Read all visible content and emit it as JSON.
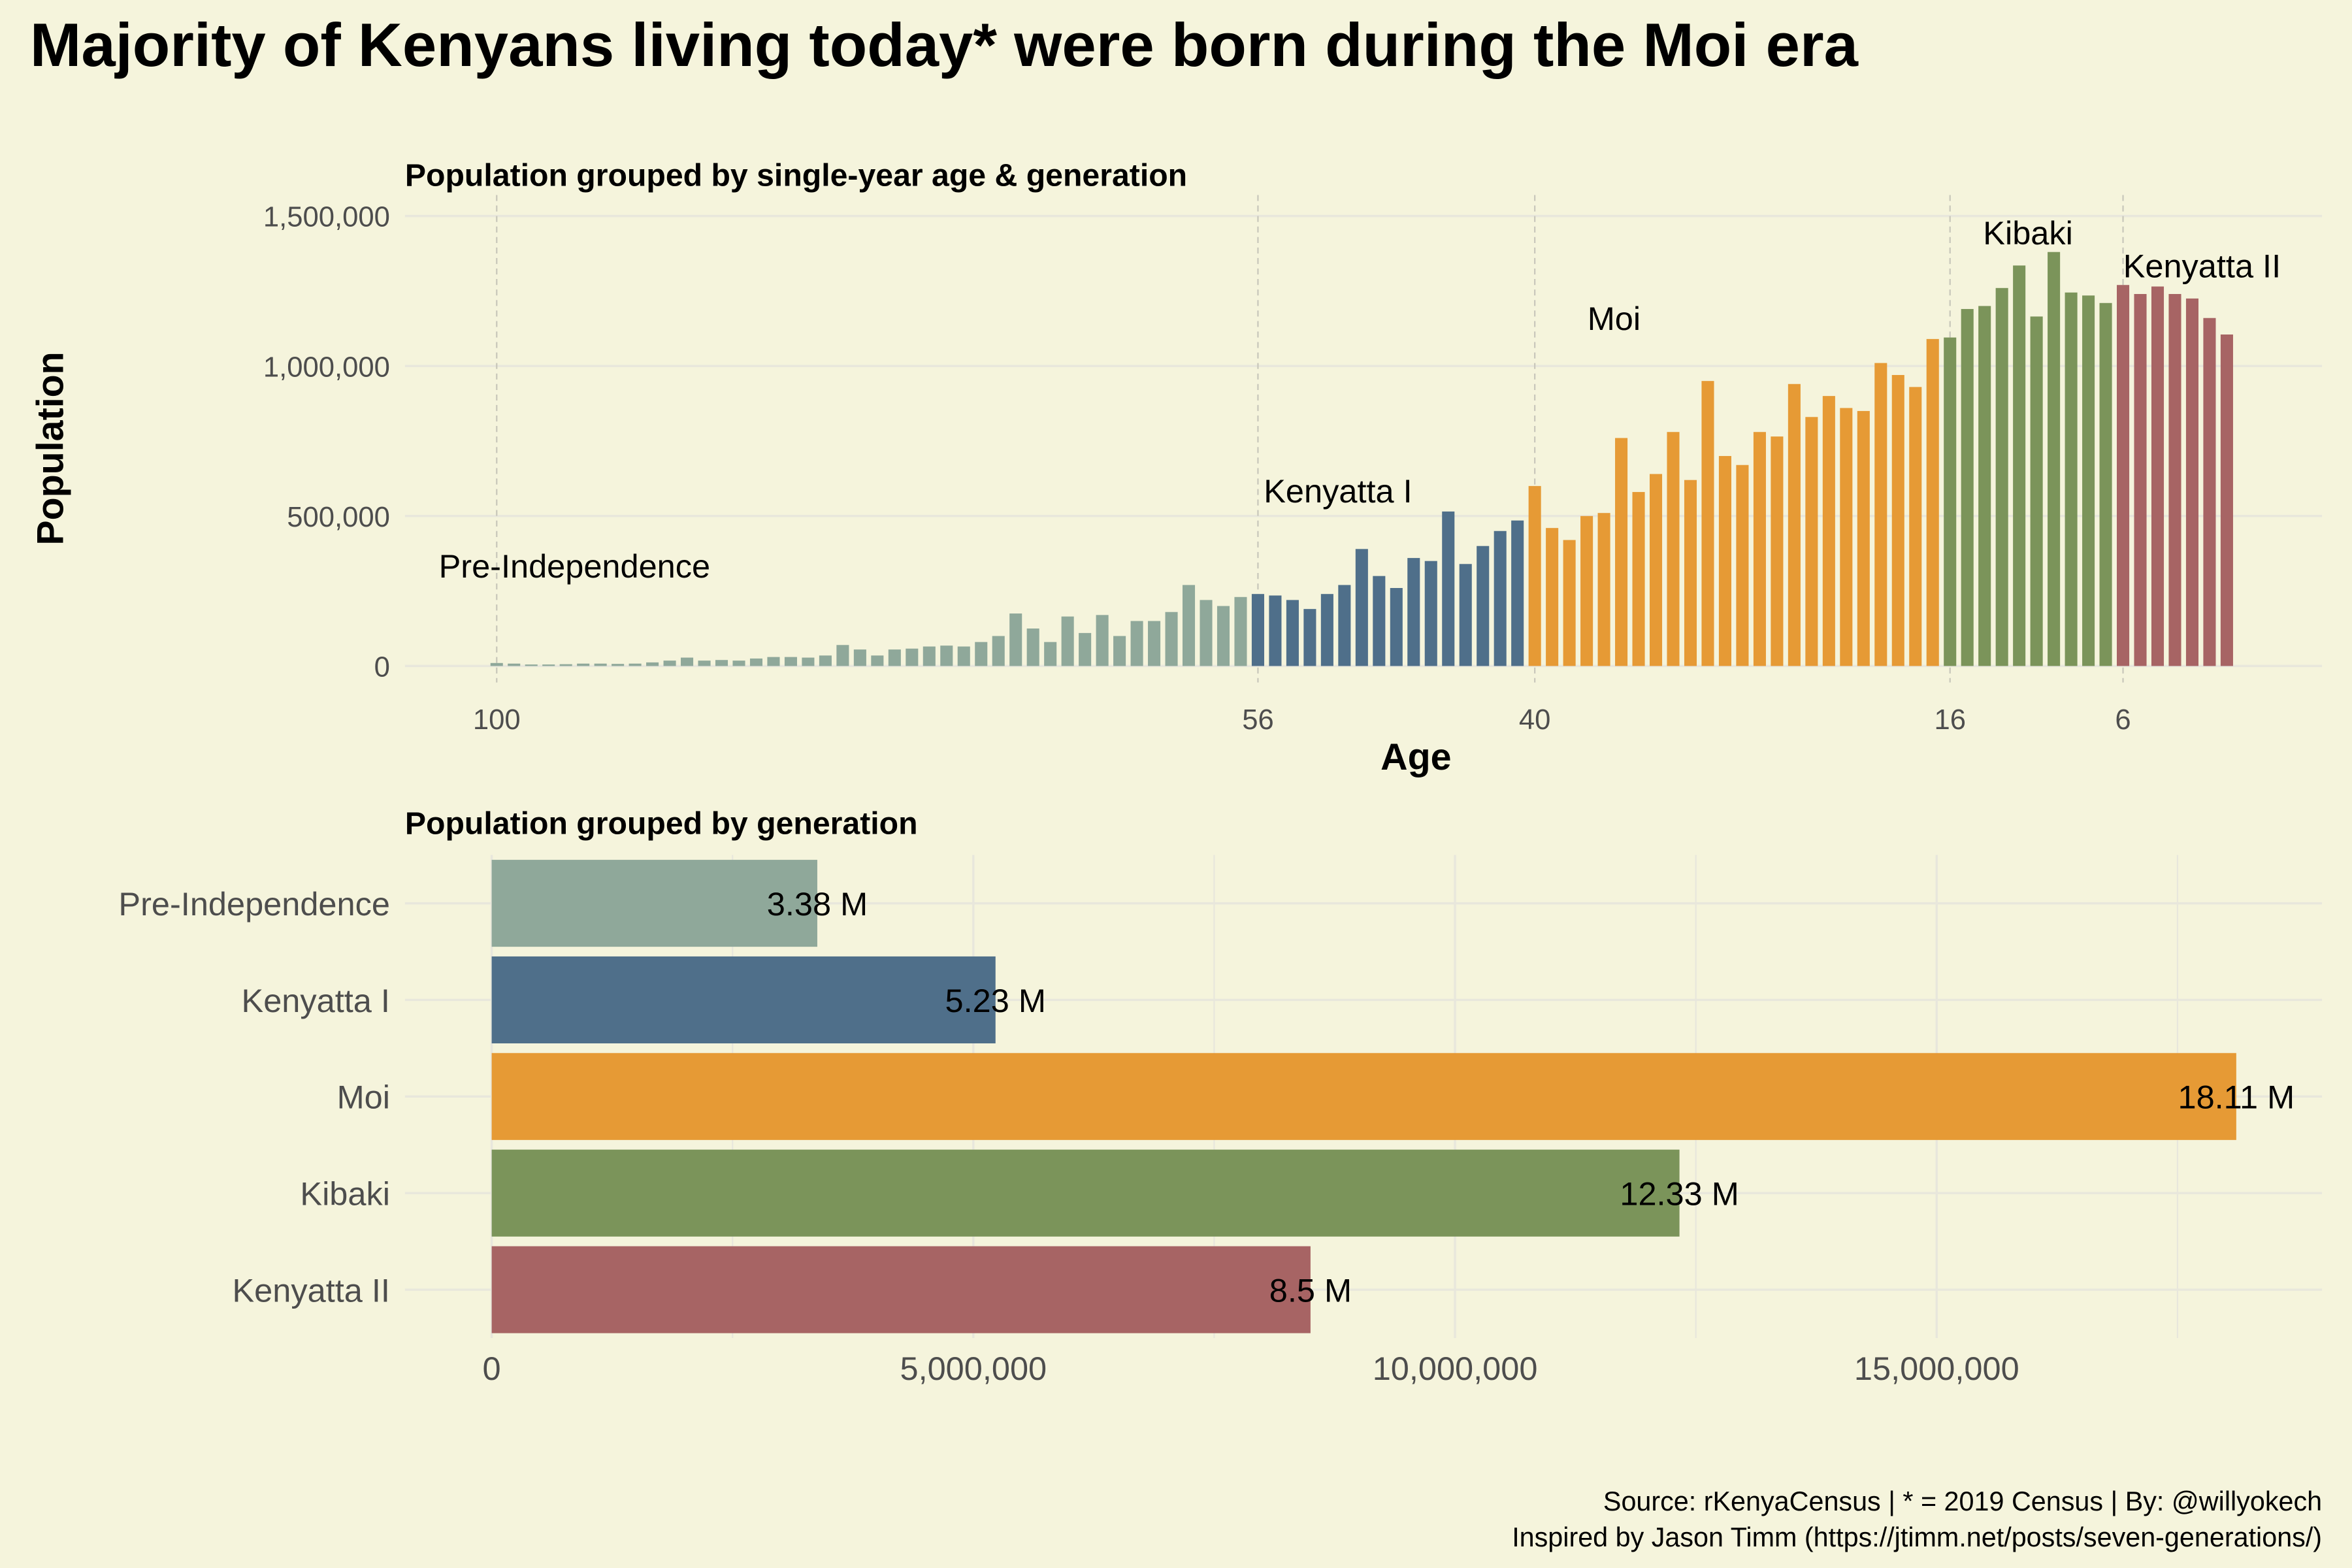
{
  "title": "Majority of Kenyans living today* were born during the Moi era",
  "caption": [
    "Source: rKenyaCensus | * = 2019 Census | By: @willyokech",
    "Inspired by Jason Timm (https://jtimm.net/posts/seven-generations/)"
  ],
  "chart_data": [
    {
      "type": "bar",
      "title": "Population grouped by single-year age & generation",
      "xlabel": "Age",
      "ylabel": "Population",
      "xlim": [
        105.3,
        -5.5
      ],
      "xticks": [
        100,
        56,
        40,
        16,
        6
      ],
      "xgrid": true,
      "ylim": [
        -55000,
        1570000
      ],
      "yticks": [
        0,
        {
          "value": 500000,
          "label": "500,000"
        },
        {
          "value": 1000000,
          "label": "1,000,000"
        },
        {
          "value": 1500000,
          "label": "1,500,000"
        }
      ],
      "grid": true,
      "series": [
        {
          "name": "Pre-Independence",
          "color": "#8fa89a",
          "x": [
            100,
            99,
            98,
            97,
            96,
            95,
            94,
            93,
            92,
            91,
            90,
            89,
            88,
            87,
            86,
            85,
            84,
            83,
            82,
            81,
            80,
            79,
            78,
            77,
            76,
            75,
            74,
            73,
            72,
            71,
            70,
            69,
            68,
            67,
            66,
            65,
            64,
            63,
            62,
            61,
            60,
            59,
            58,
            57
          ],
          "values": [
            10000,
            8000,
            5000,
            5000,
            6000,
            8000,
            8000,
            7000,
            8000,
            12000,
            18000,
            28000,
            18000,
            20000,
            18000,
            25000,
            30000,
            30000,
            28000,
            35000,
            70000,
            55000,
            35000,
            55000,
            58000,
            65000,
            68000,
            65000,
            80000,
            100000,
            175000,
            125000,
            80000,
            165000,
            110000,
            170000,
            100000,
            150000,
            150000,
            180000,
            270000,
            220000,
            200000,
            230000
          ]
        },
        {
          "name": "Kenyatta I",
          "color": "#4f6f8a",
          "x": [
            56,
            55,
            54,
            53,
            52,
            51,
            50,
            49,
            48,
            47,
            46,
            45,
            44,
            43,
            42,
            41
          ],
          "values": [
            240000,
            235000,
            220000,
            190000,
            240000,
            270000,
            390000,
            300000,
            260000,
            360000,
            350000,
            515000,
            340000,
            400000,
            450000,
            485000
          ]
        },
        {
          "name": "Moi",
          "color": "#e69a35",
          "x": [
            40,
            39,
            38,
            37,
            36,
            35,
            34,
            33,
            32,
            31,
            30,
            29,
            28,
            27,
            26,
            25,
            24,
            23,
            22,
            21,
            20,
            19,
            18,
            17
          ],
          "values": [
            600000,
            460000,
            420000,
            500000,
            510000,
            760000,
            580000,
            640000,
            780000,
            620000,
            950000,
            700000,
            670000,
            780000,
            765000,
            940000,
            830000,
            900000,
            860000,
            850000,
            1010000,
            970000,
            930000,
            1090000
          ]
        },
        {
          "name": "Kibaki",
          "color": "#7b945a",
          "x": [
            16,
            15,
            14,
            13,
            12,
            11,
            10,
            9,
            8,
            7
          ],
          "values": [
            1095000,
            1190000,
            1200000,
            1260000,
            1335000,
            1165000,
            1380000,
            1245000,
            1235000,
            1210000
          ]
        },
        {
          "name": "Kenyatta II",
          "color": "#a76464",
          "x": [
            6,
            5,
            4,
            3,
            2,
            1,
            0
          ],
          "values": [
            1270000,
            1240000,
            1265000,
            1240000,
            1225000,
            1160000,
            1105000
          ]
        }
      ]
    },
    {
      "type": "hbar",
      "title": "Population grouped by generation",
      "categories": [
        "Pre-Independence",
        "Kenyatta I",
        "Moi",
        "Kibaki",
        "Kenyatta II"
      ],
      "values": [
        3380000,
        5230000,
        18110000,
        12330000,
        8500000
      ],
      "value_labels": [
        "3.38 M",
        "5.23 M",
        "18.11 M",
        "12.33 M",
        "8.5 M"
      ],
      "colors": [
        "#8fa89a",
        "#4f6f8a",
        "#e69a35",
        "#7b945a",
        "#a76464"
      ],
      "xlim": [
        -900000,
        19000000
      ],
      "xticks": [
        0,
        {
          "value": 5000000,
          "label": "5,000,000"
        },
        {
          "value": 10000000,
          "label": "10,000,000"
        },
        {
          "value": 15000000,
          "label": "15,000,000"
        }
      ],
      "minor_xticks": [
        2500000,
        7500000,
        12500000,
        17500000
      ],
      "grid": true
    }
  ]
}
